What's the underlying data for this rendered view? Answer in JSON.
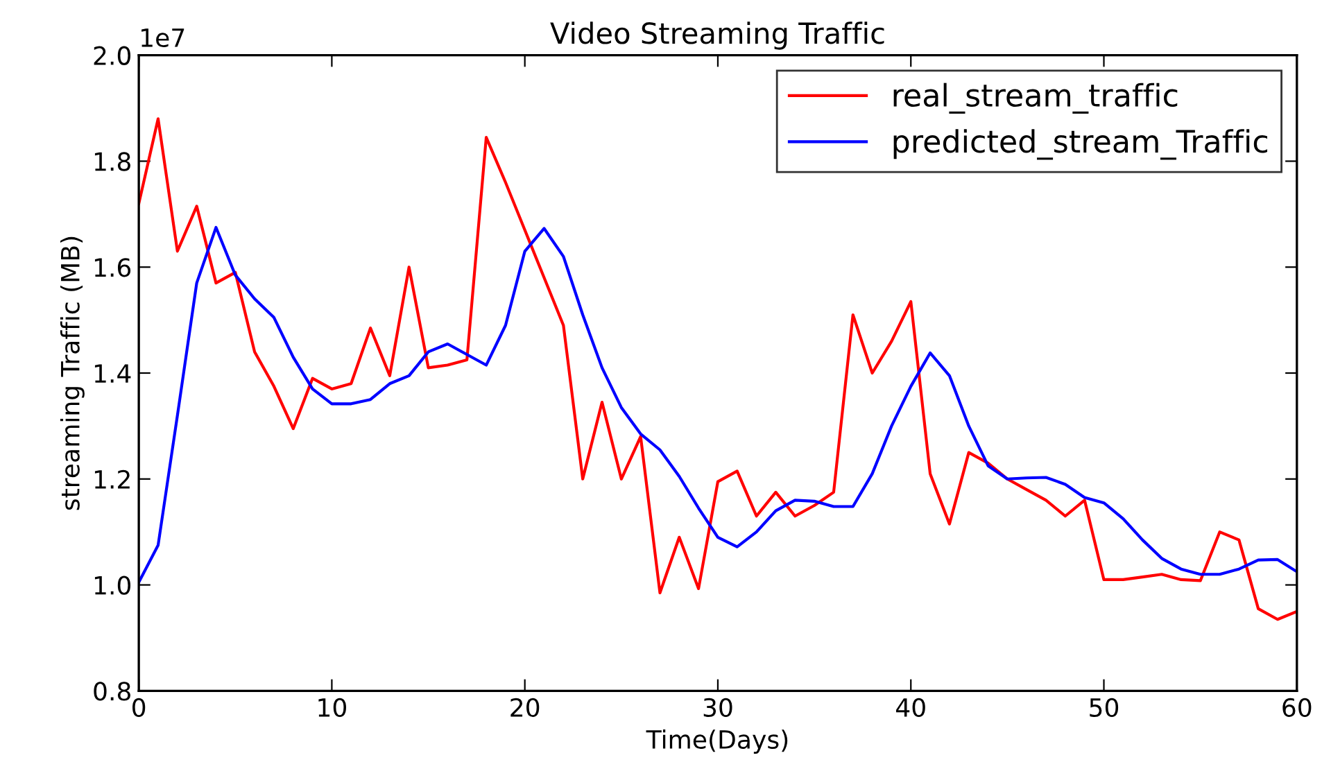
{
  "chart_data": {
    "type": "line",
    "title": "Video Streaming Traffic",
    "xlabel": "Time(Days)",
    "ylabel": "streaming Traffic (MB)",
    "annotations": [
      "1e7"
    ],
    "x": [
      0,
      1,
      2,
      3,
      4,
      5,
      6,
      7,
      8,
      9,
      10,
      11,
      12,
      13,
      14,
      15,
      16,
      17,
      18,
      19,
      20,
      21,
      22,
      23,
      24,
      25,
      26,
      27,
      28,
      29,
      30,
      31,
      32,
      33,
      34,
      35,
      36,
      37,
      38,
      39,
      40,
      41,
      42,
      43,
      44,
      45,
      46,
      47,
      48,
      49,
      50,
      51,
      52,
      53,
      54,
      55,
      56,
      57,
      58,
      59,
      60
    ],
    "series": [
      {
        "name": "real_stream_traffic",
        "color": "#ff0000",
        "values": [
          1.72,
          1.88,
          1.63,
          1.715,
          1.57,
          1.59,
          1.44,
          1.375,
          1.295,
          1.39,
          1.37,
          1.38,
          1.485,
          1.395,
          1.6,
          1.41,
          1.415,
          1.425,
          1.845,
          1.76,
          1.67,
          1.58,
          1.49,
          1.2,
          1.345,
          1.2,
          1.28,
          0.985,
          1.09,
          0.993,
          1.195,
          1.215,
          1.13,
          1.175,
          1.13,
          1.15,
          1.175,
          1.51,
          1.4,
          1.46,
          1.535,
          1.21,
          1.115,
          1.25,
          1.23,
          1.2,
          1.18,
          1.16,
          1.13,
          1.16,
          1.01,
          1.01,
          1.015,
          1.02,
          1.01,
          1.008,
          1.1,
          1.085,
          0.955,
          0.935,
          0.95
        ]
      },
      {
        "name": "predicted_stream_Traffic",
        "color": "#0000ff",
        "values": [
          1.005,
          1.075,
          1.32,
          1.57,
          1.675,
          1.585,
          1.54,
          1.505,
          1.43,
          1.37,
          1.342,
          1.342,
          1.35,
          1.38,
          1.395,
          1.44,
          1.455,
          1.435,
          1.415,
          1.49,
          1.63,
          1.673,
          1.62,
          1.51,
          1.41,
          1.335,
          1.285,
          1.255,
          1.205,
          1.145,
          1.09,
          1.072,
          1.1,
          1.14,
          1.16,
          1.158,
          1.148,
          1.148,
          1.21,
          1.3,
          1.375,
          1.438,
          1.395,
          1.3,
          1.225,
          1.2,
          1.202,
          1.203,
          1.19,
          1.165,
          1.155,
          1.125,
          1.085,
          1.05,
          1.03,
          1.02,
          1.02,
          1.03,
          1.047,
          1.048,
          1.025
        ]
      }
    ],
    "xlim": [
      0,
      60
    ],
    "xticks": [
      0,
      10,
      20,
      30,
      40,
      50,
      60
    ],
    "ylim": [
      0.8,
      2.0
    ],
    "yticks": [
      0.8,
      {
        "value": 1,
        "label": "1.0"
      },
      1.2,
      1.4,
      1.6,
      1.8,
      {
        "value": 2,
        "label": "2.0"
      }
    ],
    "grid": false,
    "legend": "top right",
    "marker": "none",
    "line_style": "solid"
  }
}
